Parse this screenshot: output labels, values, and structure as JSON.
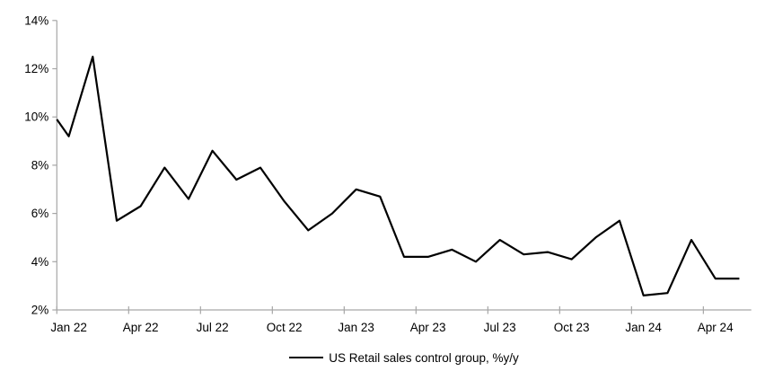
{
  "chart_data": {
    "type": "line",
    "title": "",
    "legend": "US Retail sales control group, %y/y",
    "legend_position": "bottom-center",
    "grid": false,
    "series_color": "#000000",
    "axis_color": "#a6a6a6",
    "text_color": "#000000",
    "ylim": [
      2,
      14
    ],
    "y_tick_step": 2,
    "y_tick_labels": [
      "2%",
      "4%",
      "6%",
      "8%",
      "10%",
      "12%",
      "14%"
    ],
    "x_tick_labels": [
      "Jan 22",
      "Apr 22",
      "Jul 22",
      "Oct 22",
      "Jan 23",
      "Apr 23",
      "Jul 23",
      "Oct 23",
      "Jan 24",
      "Apr 24"
    ],
    "x_label_interval_months": 3,
    "first_point_on_y_axis": true,
    "x": [
      "Dec 21",
      "Jan 22",
      "Feb 22",
      "Mar 22",
      "Apr 22",
      "May 22",
      "Jun 22",
      "Jul 22",
      "Aug 22",
      "Sep 22",
      "Oct 22",
      "Nov 22",
      "Dec 22",
      "Jan 23",
      "Feb 23",
      "Mar 23",
      "Apr 23",
      "May 23",
      "Jun 23",
      "Jul 23",
      "Aug 23",
      "Sep 23",
      "Oct 23",
      "Nov 23",
      "Dec 23",
      "Jan 24",
      "Feb 24",
      "Mar 24",
      "Apr 24",
      "May 24"
    ],
    "values": [
      9.9,
      9.2,
      12.5,
      5.7,
      6.3,
      7.9,
      6.6,
      8.6,
      7.4,
      7.9,
      6.5,
      5.3,
      6.0,
      7.0,
      6.7,
      4.2,
      4.2,
      4.5,
      4.0,
      4.9,
      4.3,
      4.4,
      4.1,
      5.0,
      5.7,
      2.6,
      2.7,
      4.9,
      3.3,
      3.3
    ]
  }
}
